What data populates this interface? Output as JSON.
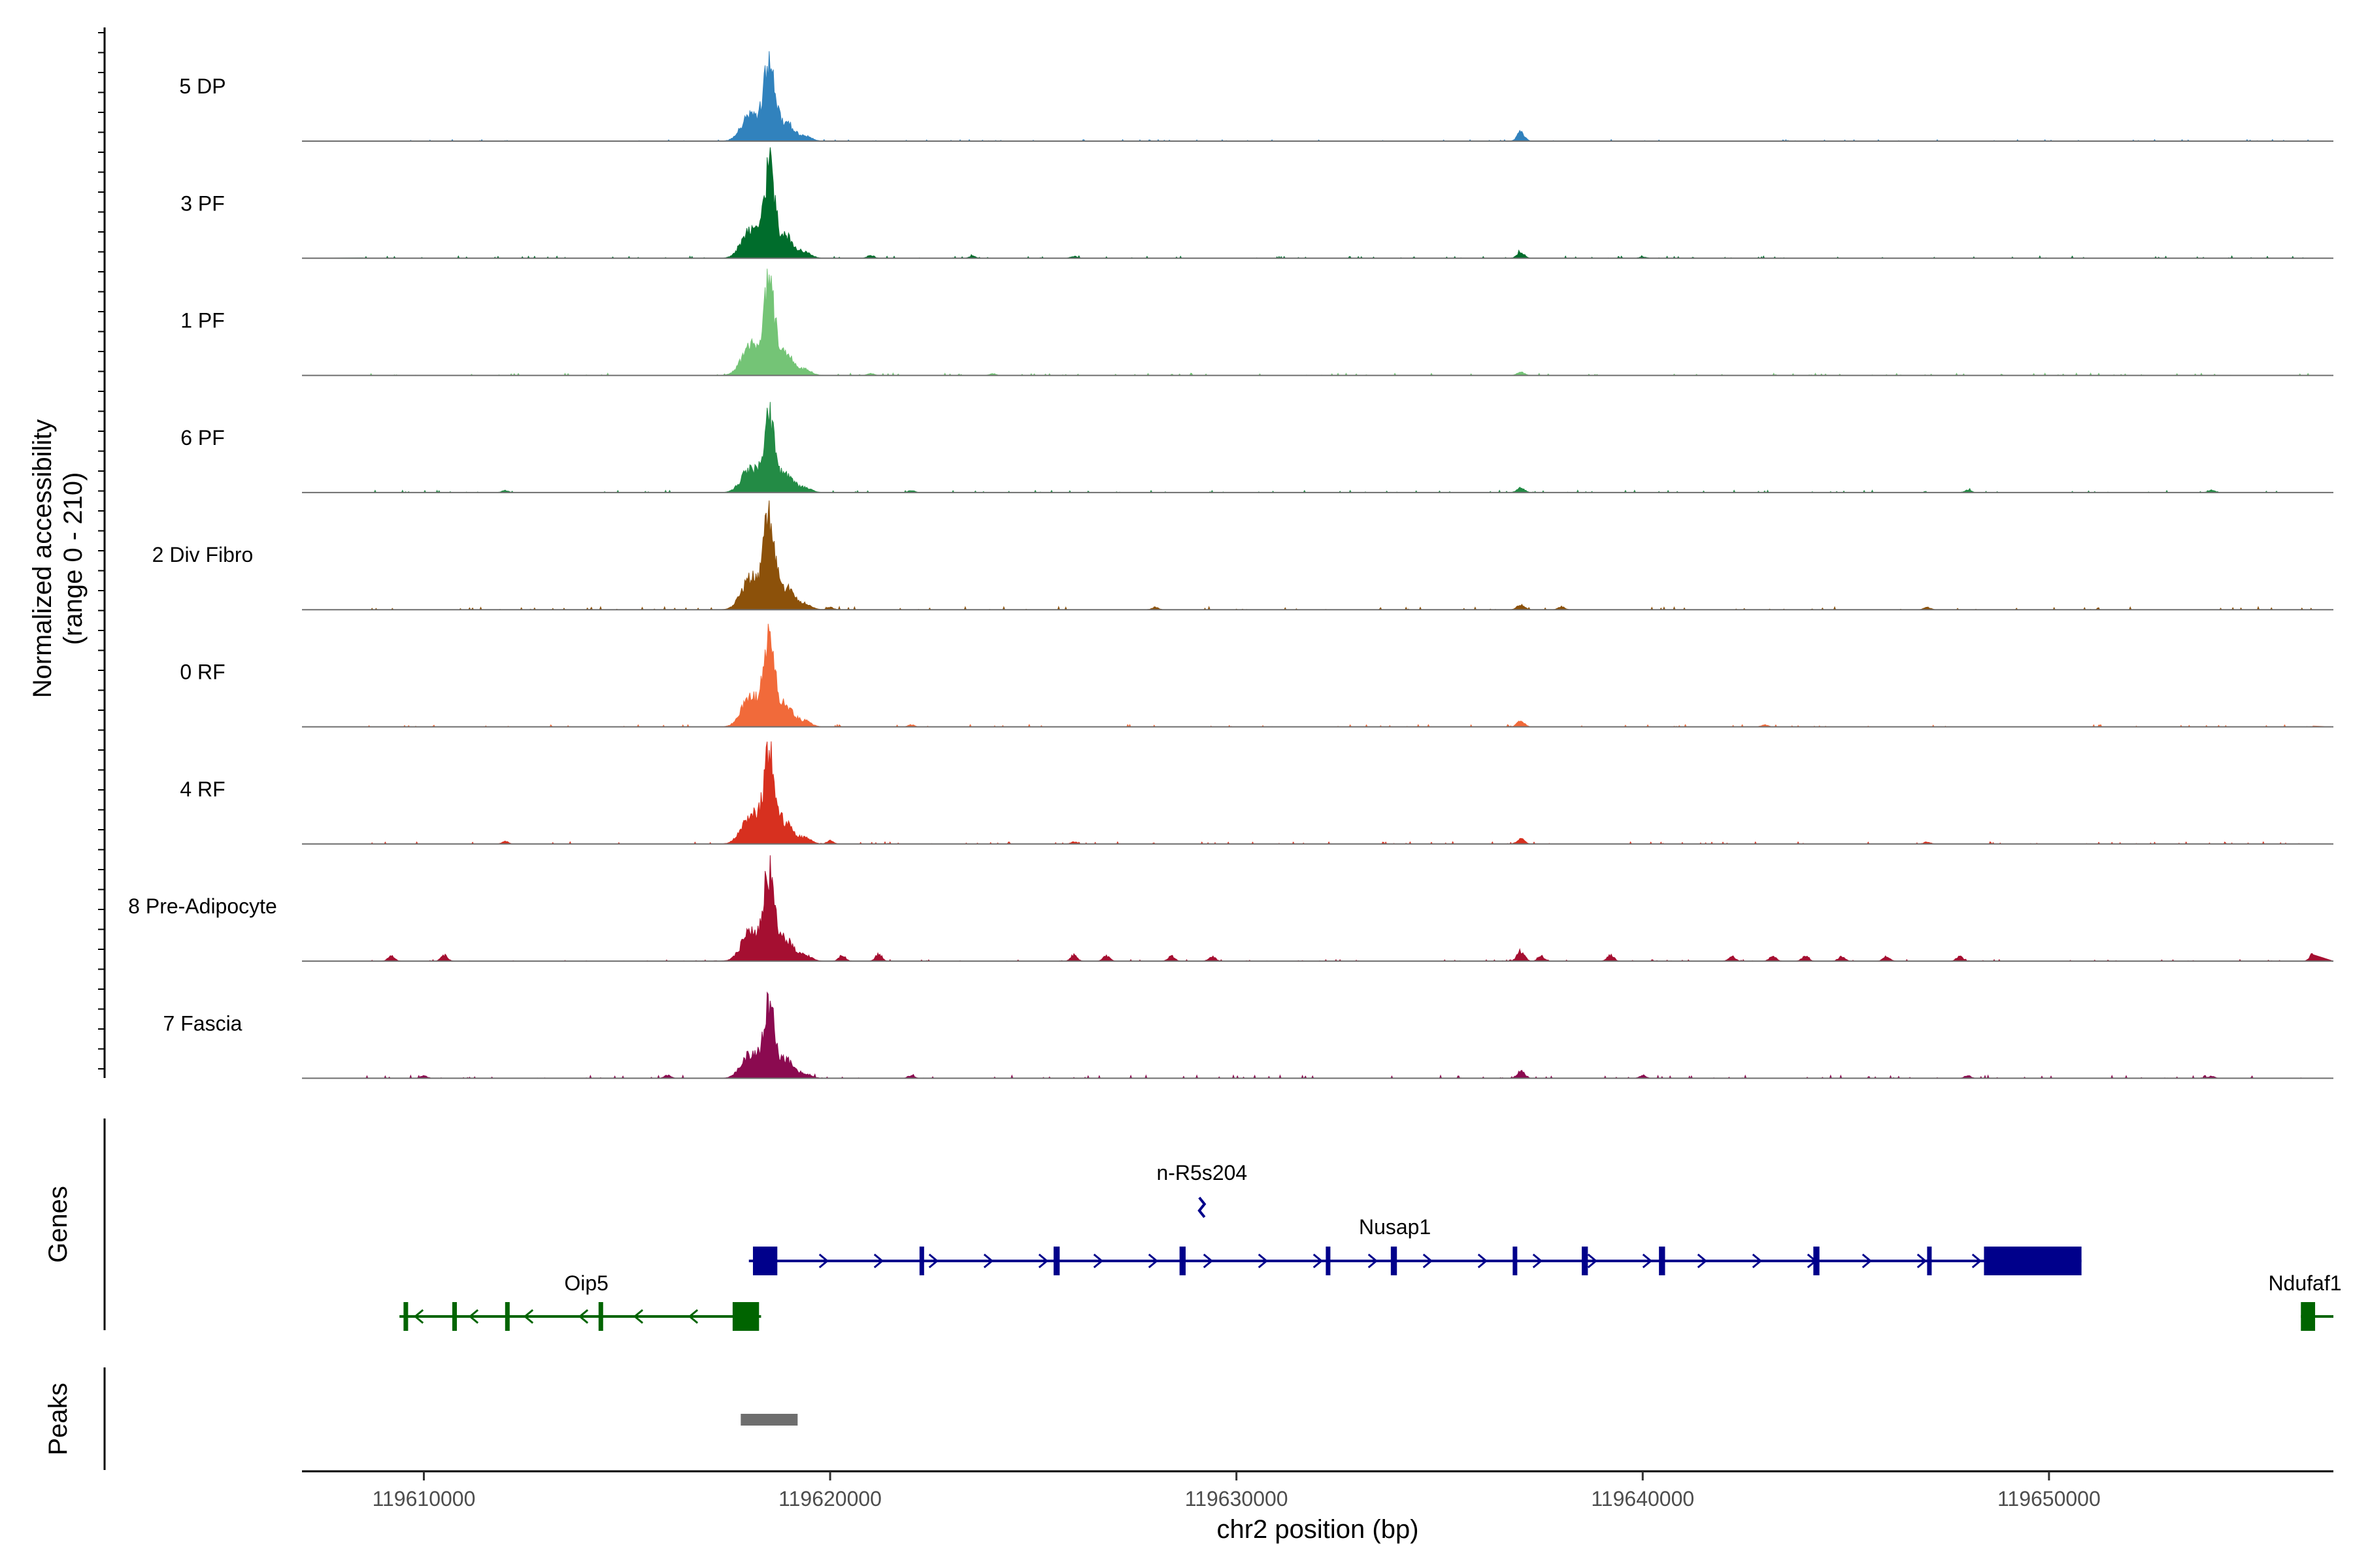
{
  "chart_data": {
    "type": "area",
    "title": "",
    "ylabel": "Normalized accessibility",
    "ylabel_range": "(range 0 - 210)",
    "ylim": [
      0,
      210
    ],
    "xlabel": "chr2 position (bp)",
    "xlim": [
      119607000,
      119657000
    ],
    "xticks": [
      119610000,
      119620000,
      119630000,
      119640000,
      119650000
    ],
    "xtick_labels": [
      "119610000",
      "119620000",
      "119630000",
      "119640000",
      "119650000"
    ],
    "peak_center": 119618500,
    "secondary_peak": 119637000,
    "tracks": [
      {
        "label": "5 DP",
        "color": "#3182BD",
        "peak_height": 150,
        "secondary_height": 18,
        "noise_level": 2,
        "bumps": []
      },
      {
        "label": "3 PF",
        "color": "#006D2C",
        "peak_height": 170,
        "secondary_height": 12,
        "noise_level": 3,
        "bumps": [
          [
            119621000,
            6
          ],
          [
            119623500,
            4
          ],
          [
            119626000,
            4
          ],
          [
            119640000,
            3
          ]
        ]
      },
      {
        "label": "1 PF",
        "color": "#74C476",
        "peak_height": 170,
        "secondary_height": 6,
        "noise_level": 3,
        "bumps": [
          [
            119621000,
            4
          ],
          [
            119624000,
            3
          ]
        ]
      },
      {
        "label": "6 PF",
        "color": "#238B45",
        "peak_height": 140,
        "secondary_height": 10,
        "noise_level": 3,
        "bumps": [
          [
            119612000,
            4
          ],
          [
            119622000,
            4
          ],
          [
            119648000,
            5
          ],
          [
            119654000,
            5
          ]
        ]
      },
      {
        "label": "2 Div Fibro",
        "color": "#8C510A",
        "peak_height": 180,
        "secondary_height": 10,
        "noise_level": 4,
        "bumps": [
          [
            119620000,
            5
          ],
          [
            119628000,
            5
          ],
          [
            119638000,
            6
          ],
          [
            119647000,
            5
          ]
        ]
      },
      {
        "label": "0 RF",
        "color": "#F16A3A",
        "peak_height": 170,
        "secondary_height": 12,
        "noise_level": 3,
        "bumps": [
          [
            119622000,
            4
          ],
          [
            119643000,
            4
          ]
        ]
      },
      {
        "label": "4 RF",
        "color": "#D7301F",
        "peak_height": 170,
        "secondary_height": 10,
        "noise_level": 3,
        "bumps": [
          [
            119612000,
            5
          ],
          [
            119620000,
            6
          ],
          [
            119626000,
            4
          ],
          [
            119647000,
            4
          ]
        ]
      },
      {
        "label": "8 Pre-Adipocyte",
        "color": "#A50F31",
        "peak_height": 170,
        "secondary_height": 20,
        "noise_level": 2,
        "bumps": [
          [
            119609200,
            10
          ],
          [
            119610500,
            12
          ],
          [
            119620300,
            12
          ],
          [
            119621200,
            14
          ],
          [
            119626000,
            12
          ],
          [
            119626800,
            10
          ],
          [
            119628400,
            10
          ],
          [
            119629400,
            10
          ],
          [
            119637500,
            10
          ],
          [
            119639200,
            12
          ],
          [
            119642200,
            10
          ],
          [
            119643200,
            10
          ],
          [
            119644000,
            10
          ],
          [
            119644900,
            10
          ],
          [
            119646000,
            10
          ],
          [
            119647800,
            10
          ],
          [
            119656500,
            14
          ]
        ]
      },
      {
        "label": "7 Fascia",
        "color": "#8B0A50",
        "peak_height": 140,
        "secondary_height": 14,
        "noise_level": 4,
        "bumps": [
          [
            119610000,
            5
          ],
          [
            119616000,
            6
          ],
          [
            119622000,
            5
          ],
          [
            119640000,
            6
          ],
          [
            119648000,
            5
          ],
          [
            119654000,
            4
          ]
        ]
      }
    ],
    "genes_title": "Genes",
    "peaks_title": "Peaks",
    "genes": [
      {
        "name": "Oip5",
        "strand": "-",
        "color": "#006400",
        "start": 119609400,
        "end": 119618300,
        "row": 2,
        "exons": [
          [
            119609500,
            119609600
          ],
          [
            119610700,
            119610800
          ],
          [
            119612000,
            119612100
          ],
          [
            119614300,
            119614400
          ],
          [
            119617600,
            119618250
          ]
        ]
      },
      {
        "name": "Nusap1",
        "strand": "+",
        "color": "#00008B",
        "start": 119618000,
        "end": 119650800,
        "row": 1,
        "exons": [
          [
            119618100,
            119618700
          ],
          [
            119622200,
            119622300
          ],
          [
            119625500,
            119625650
          ],
          [
            119628600,
            119628750
          ],
          [
            119632200,
            119632300
          ],
          [
            119633800,
            119633950
          ],
          [
            119636800,
            119636900
          ],
          [
            119638500,
            119638650
          ],
          [
            119640400,
            119640550
          ],
          [
            119644200,
            119644350
          ],
          [
            119647000,
            119647100
          ],
          [
            119648400,
            119650800
          ]
        ]
      },
      {
        "name": "n-R5s204",
        "strand": "+",
        "color": "#00008B",
        "start": 119629150,
        "end": 119629270,
        "row": 0,
        "exons": [
          [
            119629150,
            119629270
          ]
        ]
      },
      {
        "name": "Ndufaf1",
        "strand": "-",
        "color": "#006400",
        "start": 119656200,
        "end": 119657000,
        "row": 2,
        "exons": [
          [
            119656200,
            119656550
          ]
        ]
      }
    ],
    "peaks": [
      {
        "start": 119617800,
        "end": 119619200,
        "color": "#6E6E6E"
      }
    ]
  }
}
